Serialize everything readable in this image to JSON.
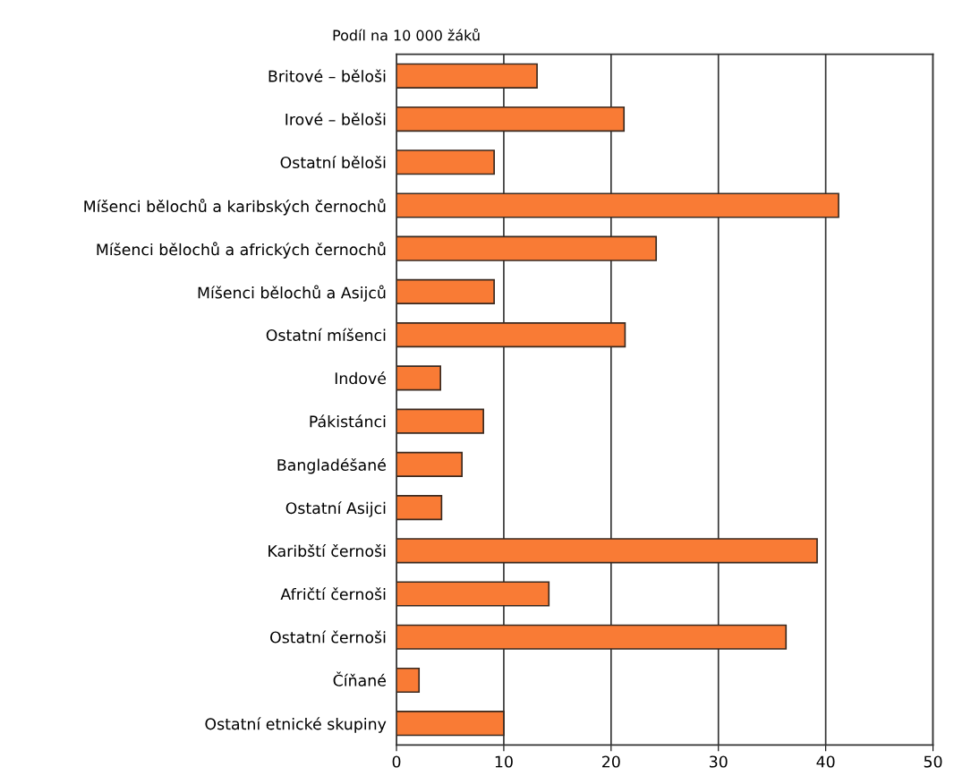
{
  "chart_data": {
    "type": "bar",
    "orientation": "horizontal",
    "xlabel": "Podíl na 10 000 žáků",
    "categories": [
      "Britové – běloši",
      "Irové – běloši",
      "Ostatní běloši",
      "Míšenci bělochů a karibských černochů",
      "Míšenci bělochů a afrických černochů",
      "Míšenci bělochů a Asijců",
      "Ostatní míšenci",
      "Indové",
      "Pákistánci",
      "Bangladéšané",
      "Ostatní Asijci",
      "Karibští černoši",
      "Afričtí černoši",
      "Ostatní černoši",
      "Číňané",
      "Ostatní etnické skupiny"
    ],
    "values": [
      13.1,
      21.2,
      9.1,
      41.2,
      24.2,
      9.1,
      21.3,
      4.1,
      8.1,
      6.1,
      4.2,
      39.2,
      14.2,
      36.3,
      2.1,
      10.0
    ],
    "color": "#f97b35",
    "xlim": [
      0,
      50
    ],
    "xticks": [
      0,
      10,
      20,
      30,
      40,
      50
    ],
    "grid": "x",
    "legend": false
  }
}
